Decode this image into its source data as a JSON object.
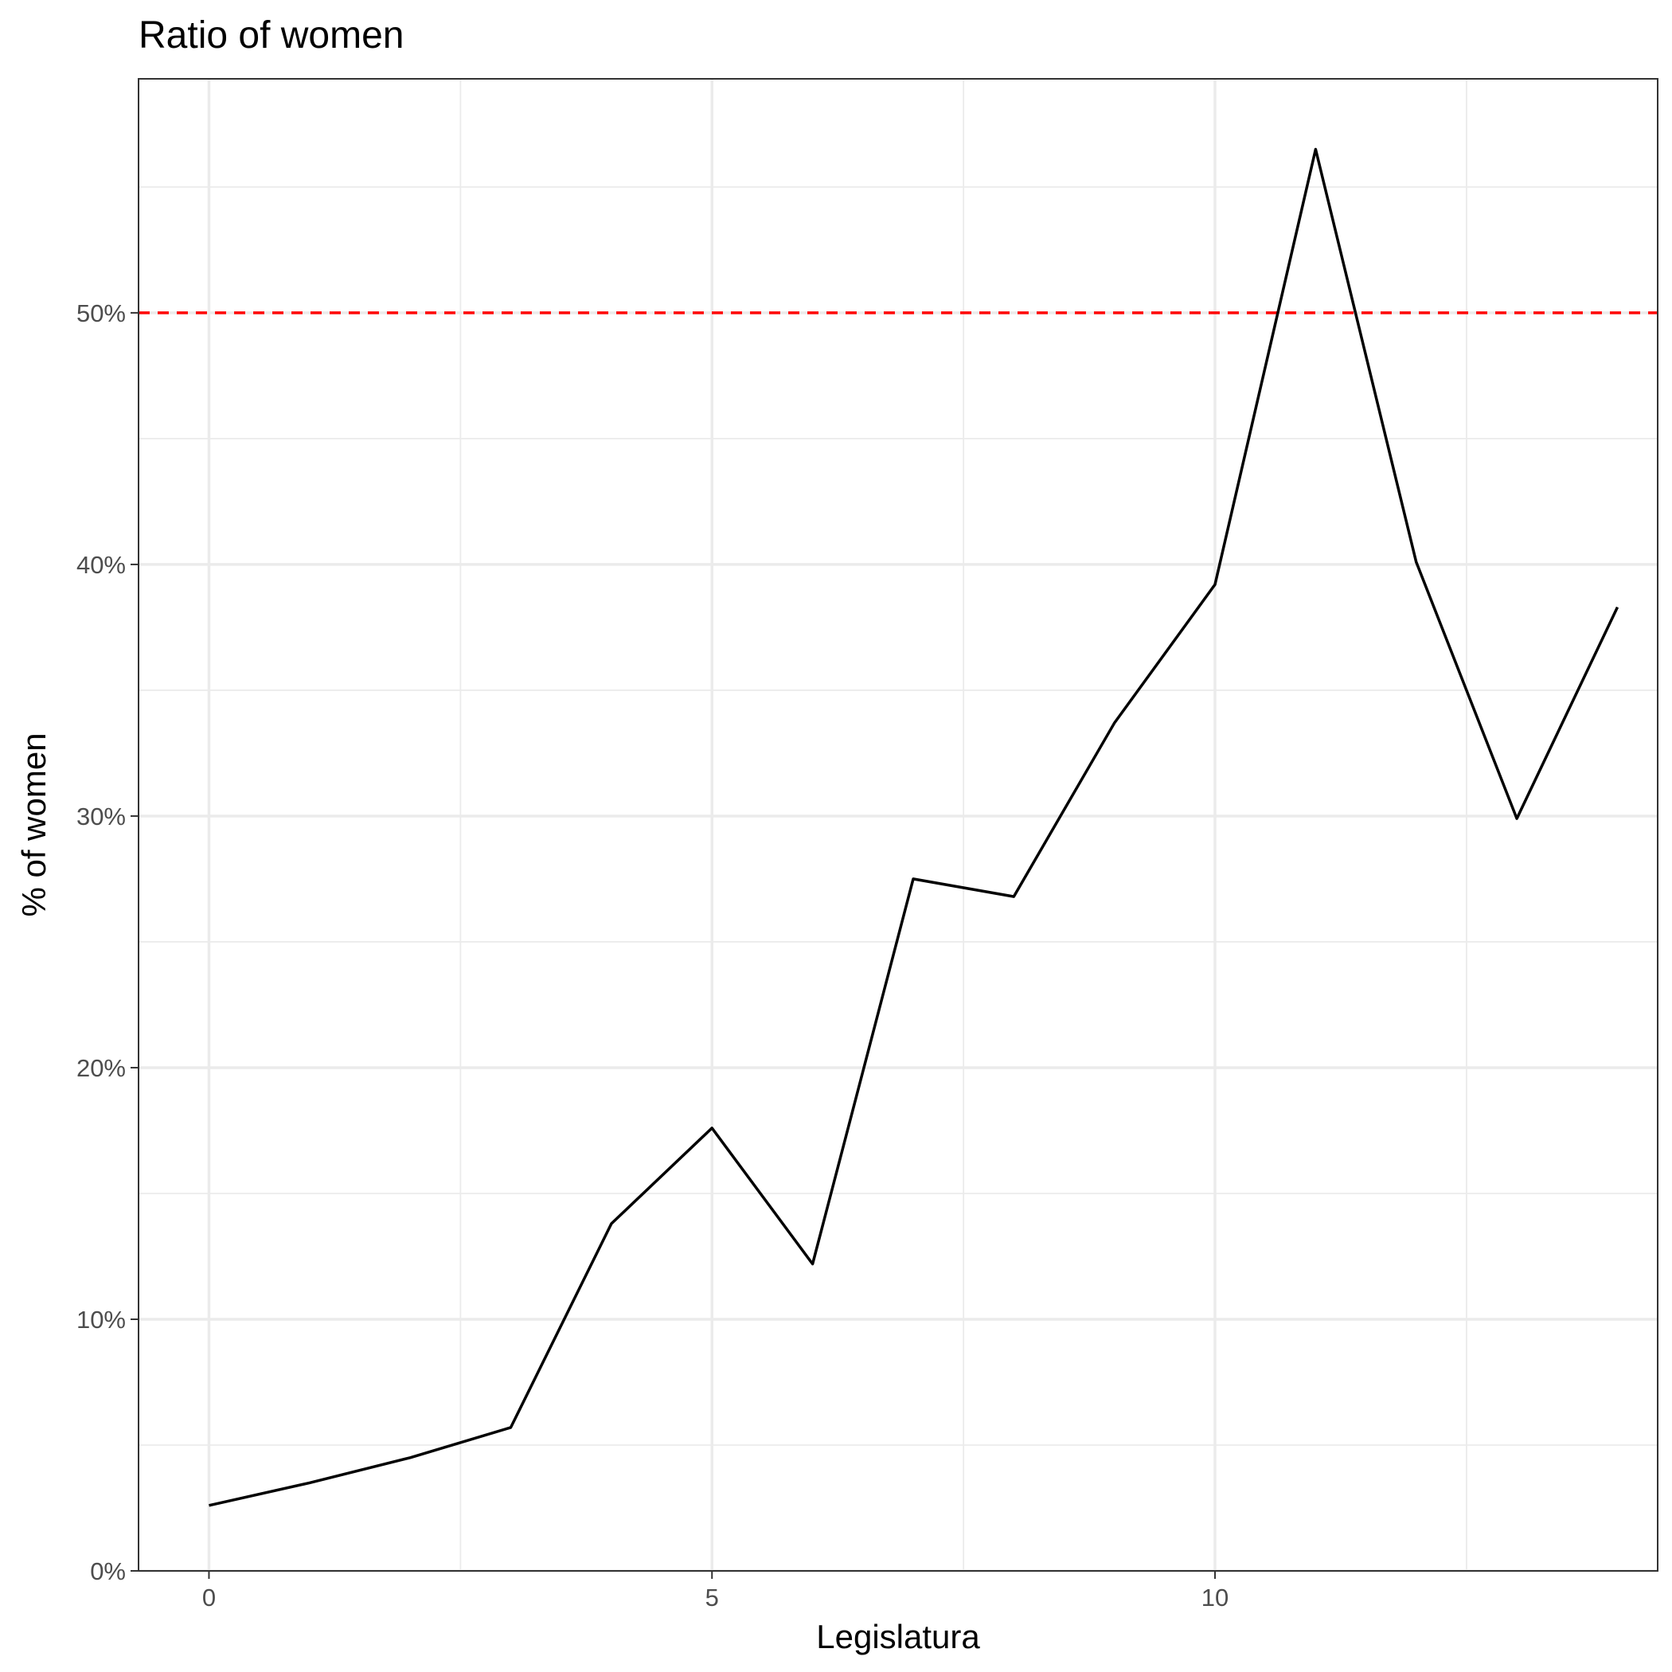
{
  "chart_data": {
    "type": "line",
    "title": "Ratio of women",
    "xlabel": "Legislatura",
    "ylabel": "% of women",
    "x": [
      0,
      1,
      2,
      3,
      4,
      5,
      6,
      7,
      8,
      9,
      10,
      11,
      12,
      13,
      14
    ],
    "series": [
      {
        "values": [
          0.026,
          0.035,
          0.045,
          0.057,
          0.138,
          0.176,
          0.122,
          0.275,
          0.268,
          0.337,
          0.392,
          0.565,
          0.401,
          0.299,
          0.383
        ]
      }
    ],
    "reference_line": {
      "y": 0.5,
      "color": "#ff0000",
      "style": "dashed"
    },
    "xlim": [
      -0.7,
      14.4
    ],
    "ylim": [
      0,
      0.593
    ],
    "x_ticks": [
      0,
      5,
      10
    ],
    "x_tick_labels": [
      "0",
      "5",
      "10"
    ],
    "y_ticks": [
      0,
      0.1,
      0.2,
      0.3,
      0.4,
      0.5
    ],
    "y_tick_labels": [
      "0%",
      "10%",
      "20%",
      "30%",
      "40%",
      "50%"
    ],
    "grid": true,
    "legend": "none"
  }
}
